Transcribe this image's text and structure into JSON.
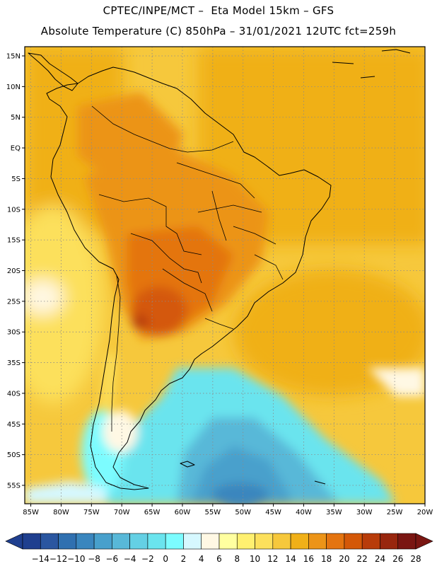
{
  "header": {
    "line1": "CPTEC/INPE/MCT –  Eta Model 15km – GFS",
    "line2": "Absolute Temperature (C) 850hPa – 31/01/2021 12UTC fct=259h"
  },
  "map": {
    "lat_labels": [
      "15N",
      "10N",
      "5N",
      "EQ",
      "5S",
      "10S",
      "15S",
      "20S",
      "25S",
      "30S",
      "35S",
      "40S",
      "45S",
      "50S",
      "55S"
    ],
    "lon_labels": [
      "85W",
      "80W",
      "75W",
      "70W",
      "65W",
      "60W",
      "55W",
      "50W",
      "45W",
      "40W",
      "35W",
      "30W",
      "25W",
      "20W"
    ],
    "lat_range": [
      -58,
      16.5
    ],
    "lon_range": [
      -86,
      -20
    ],
    "grid": "dotted"
  },
  "colorbar": {
    "labels": [
      "-14",
      "-12",
      "-10",
      "-8",
      "-6",
      "-4",
      "-2",
      "0",
      "2",
      "4",
      "6",
      "8",
      "10",
      "12",
      "14",
      "16",
      "18",
      "20",
      "22",
      "24",
      "26",
      "28"
    ],
    "colors": [
      "#1f3f8f",
      "#2a56a0",
      "#3070b0",
      "#3a86be",
      "#48a0cc",
      "#58b8d8",
      "#64d0e4",
      "#6ae4ee",
      "#7cfcff",
      "#d6f8ff",
      "#fff8e4",
      "#ffffa0",
      "#fff070",
      "#fce05c",
      "#f6c83c",
      "#f0b018",
      "#ec9418",
      "#e47410",
      "#d45808",
      "#b83c0a",
      "#98260e",
      "#7a1612"
    ]
  }
}
